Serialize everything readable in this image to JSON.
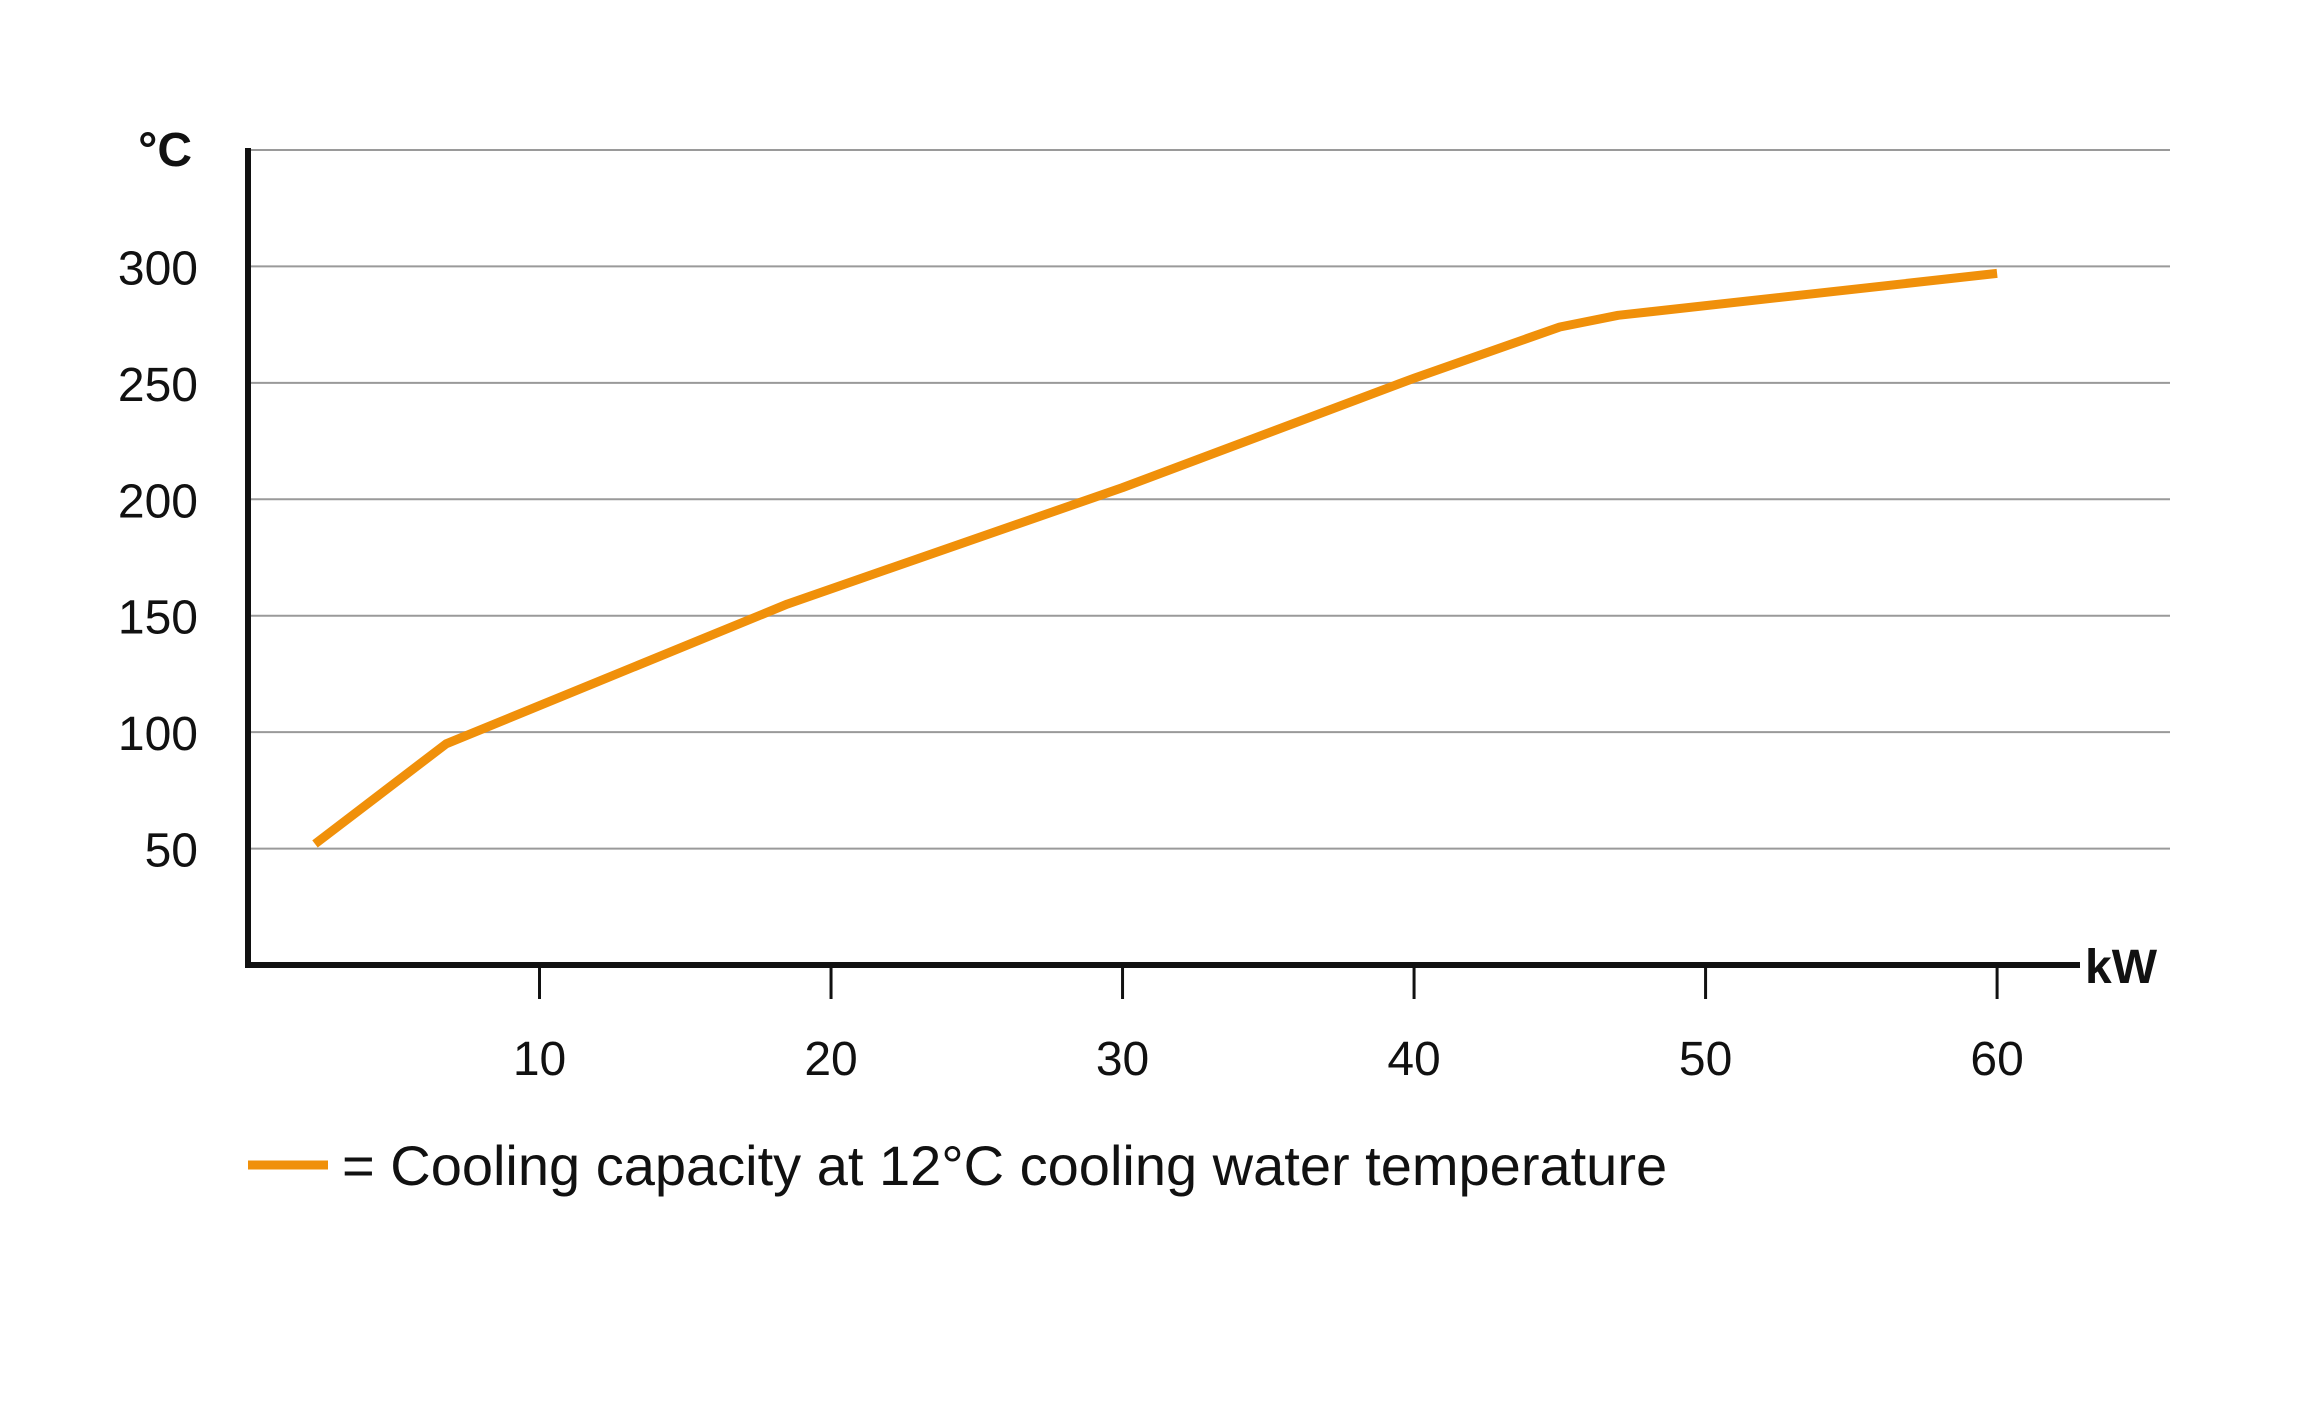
{
  "chart_data": {
    "type": "line",
    "xlabel": "kW",
    "ylabel": "°C",
    "xlim": [
      0,
      66
    ],
    "ylim": [
      0,
      350
    ],
    "x_ticks": [
      10,
      20,
      30,
      40,
      50,
      60
    ],
    "y_ticks": [
      50,
      100,
      150,
      200,
      250,
      300
    ],
    "grid": true,
    "legend": {
      "position": "bottom-left",
      "entries": [
        "= Cooling capacity at 12°C cooling water temperature"
      ]
    },
    "series": [
      {
        "color": "#f0900a",
        "x": [
          2.3,
          6.8,
          18.5,
          30,
          40,
          45,
          47,
          60
        ],
        "y": [
          52,
          95,
          155,
          205,
          252,
          274,
          279,
          297
        ]
      }
    ]
  },
  "colors": {
    "series": "#f0900a",
    "axis": "#111111",
    "grid": "#9a9a9a"
  }
}
